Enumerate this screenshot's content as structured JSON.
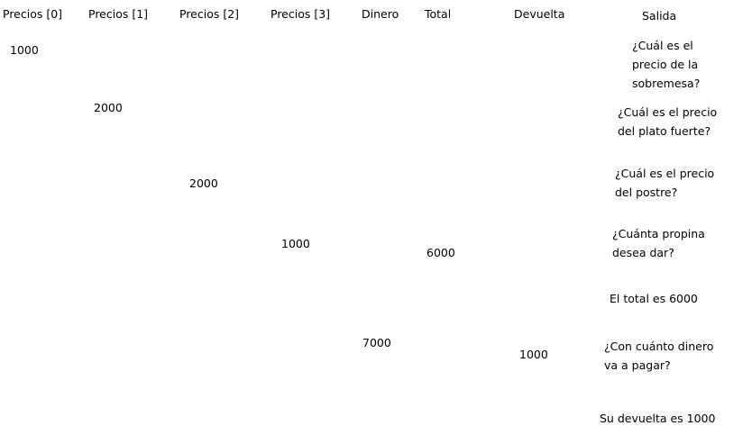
{
  "headers": {
    "precios0": "Precios [0]",
    "precios1": "Precios [1]",
    "precios2": "Precios [2]",
    "precios3": "Precios [3]",
    "dinero": "Dinero",
    "total": "Total",
    "devuelta": "Devuelta",
    "salida": "Salida"
  },
  "values": {
    "precios0": "1000",
    "precios1": "2000",
    "precios2": "2000",
    "precios3": "1000",
    "total": "6000",
    "dinero": "7000",
    "devuelta": "1000"
  },
  "salida": [
    "¿Cuál es el precio de la sobremesa?",
    "¿Cuál es el precio del plato fuerte?",
    "¿Cuál es el precio del postre?",
    "¿Cuánta propina desea dar?",
    "El total es 6000",
    "¿Con cuánto dinero va a pagar?",
    "Su devuelta es 1000"
  ]
}
